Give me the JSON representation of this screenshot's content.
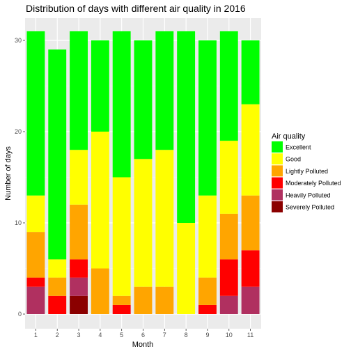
{
  "chart_data": {
    "type": "bar",
    "stacked": true,
    "title": "Distribution of days with different air quality in  2016",
    "xlabel": "Month",
    "ylabel": "Number of days",
    "categories": [
      "1",
      "2",
      "3",
      "4",
      "5",
      "6",
      "7",
      "8",
      "9",
      "10",
      "11"
    ],
    "ylim": [
      0,
      32.5
    ],
    "yticks": [
      0,
      10,
      20,
      30
    ],
    "legend_title": "Air quality",
    "legend_position": "right",
    "grid": true,
    "series": [
      {
        "name": "Severely Polluted",
        "color": "#8B0000",
        "values": [
          0,
          0,
          2,
          0,
          0,
          0,
          0,
          0,
          0,
          0,
          0
        ]
      },
      {
        "name": "Heavily Polluted",
        "color": "#B03060",
        "values": [
          3,
          0,
          2,
          0,
          0,
          0,
          0,
          0,
          0,
          2,
          3
        ]
      },
      {
        "name": "Moderately Polluted",
        "color": "#FF0000",
        "values": [
          1,
          2,
          2,
          0,
          1,
          0,
          0,
          0,
          1,
          4,
          4
        ]
      },
      {
        "name": "Lightly Polluted",
        "color": "#FFA500",
        "values": [
          5,
          2,
          6,
          5,
          1,
          3,
          3,
          0,
          3,
          5,
          6
        ]
      },
      {
        "name": "Good",
        "color": "#FFFF00",
        "values": [
          4,
          2,
          6,
          15,
          13,
          14,
          15,
          10,
          9,
          8,
          10
        ]
      },
      {
        "name": "Excellent",
        "color": "#00FF00",
        "values": [
          18,
          23,
          13,
          10,
          16,
          13,
          13,
          21,
          17,
          12,
          7
        ]
      }
    ],
    "legend_order": [
      "Excellent",
      "Good",
      "Lightly Polluted",
      "Moderately Polluted",
      "Heavily Polluted",
      "Severely Polluted"
    ]
  }
}
